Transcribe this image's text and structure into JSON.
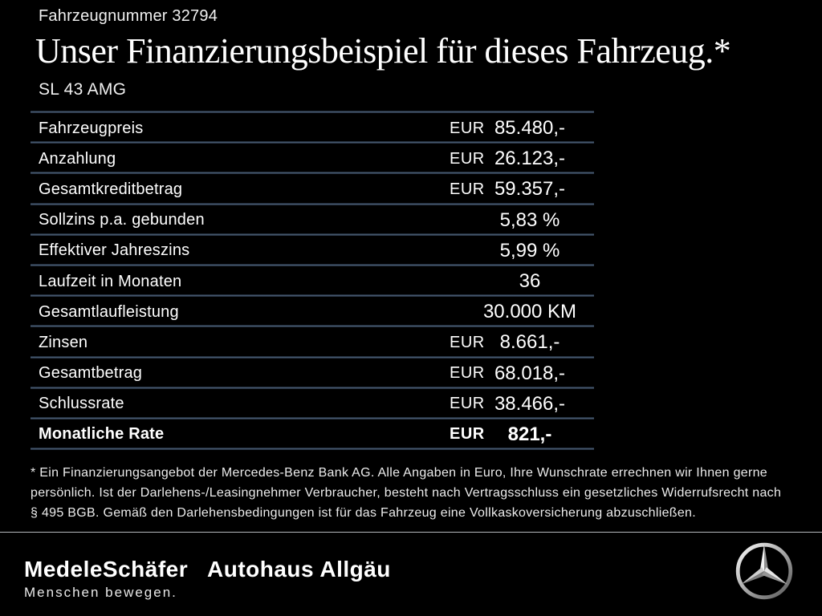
{
  "header": {
    "vehicle_number": "Fahrzeugnummer 32794",
    "title": "Unser Finanzierungsbeispiel für dieses Fahrzeug.*",
    "model": "SL 43 AMG"
  },
  "financing_table": {
    "rows": [
      {
        "label": "Fahrzeugpreis",
        "currency": "EUR",
        "value": "85.480,-",
        "bold": false
      },
      {
        "label": "Anzahlung",
        "currency": "EUR",
        "value": "26.123,-",
        "bold": false
      },
      {
        "label": "Gesamtkreditbetrag",
        "currency": "EUR",
        "value": "59.357,-",
        "bold": false
      },
      {
        "label": "Sollzins p.a. gebunden",
        "currency": "",
        "value": "5,83 %",
        "bold": false
      },
      {
        "label": "Effektiver Jahreszins",
        "currency": "",
        "value": "5,99 %",
        "bold": false
      },
      {
        "label": "Laufzeit in Monaten",
        "currency": "",
        "value": "36",
        "bold": false
      },
      {
        "label": "Gesamtlaufleistung",
        "currency": "",
        "value": "30.000 KM",
        "bold": false
      },
      {
        "label": "Zinsen",
        "currency": "EUR",
        "value": "8.661,-",
        "bold": false
      },
      {
        "label": "Gesamtbetrag",
        "currency": "EUR",
        "value": "68.018,-",
        "bold": false
      },
      {
        "label": "Schlussrate",
        "currency": "EUR",
        "value": "38.466,-",
        "bold": false
      },
      {
        "label": "Monatliche Rate",
        "currency": "EUR",
        "value": "821,-",
        "bold": true
      }
    ]
  },
  "footnote": {
    "text": "* Ein Finanzierungsangebot der Mercedes-Benz Bank AG. Alle Angaben in Euro, Ihre Wunschrate errechnen wir Ihnen gerne\npersönlich. Ist der Darlehens-/Leasingnehmer Verbraucher, besteht nach Vertragsschluss ein gesetzliches Widerrufsrecht nach\n§ 495 BGB. Gemäß den Darlehensbedingungen ist für das Fahrzeug eine Vollkaskoversicherung abzuschließen."
  },
  "footer": {
    "dealer_name": "MedeleSchäfer",
    "dealer_tagline": "Menschen bewegen.",
    "dealer_name_secondary": "Autohaus Allgäu",
    "brand_icon": "mercedes-star-icon"
  },
  "colors": {
    "background": "#000000",
    "text": "#ffffff",
    "table_separator": "#4d6078",
    "footer_divider": "#b6babd"
  }
}
